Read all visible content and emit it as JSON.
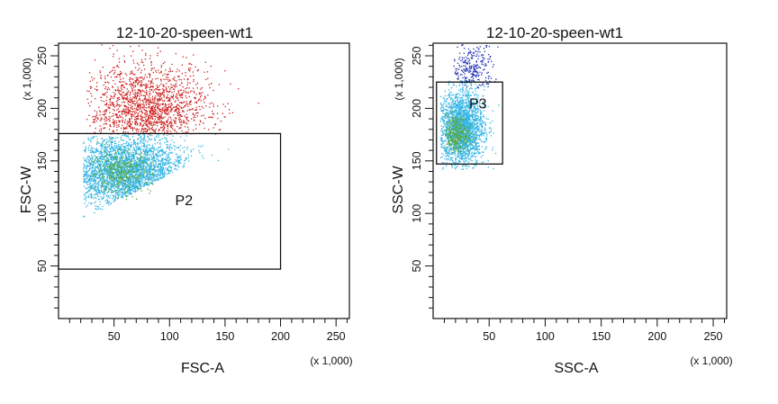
{
  "chart_data": [
    {
      "type": "scatter",
      "title": "12-10-20-speen-wt1",
      "xlabel": "FSC-A",
      "ylabel": "FSC-W",
      "x_multiplier": "(x 1,000)",
      "y_multiplier": "(x 1,000)",
      "xlim": [
        0,
        262
      ],
      "ylim": [
        0,
        262
      ],
      "x_ticks": [
        50,
        100,
        150,
        200,
        250
      ],
      "y_ticks": [
        50,
        100,
        150,
        200,
        250
      ],
      "x_tick_labels": [
        "50",
        "100",
        "150",
        "200",
        "250"
      ],
      "y_tick_labels": [
        "50",
        "100",
        "150",
        "200",
        "250"
      ],
      "gate": {
        "name": "P2",
        "x0": 0,
        "x1": 200,
        "y0": 47,
        "y1": 176
      },
      "populations": [
        {
          "color": "#cc1f1f",
          "x_range": [
            25,
            180
          ],
          "y_range": [
            176,
            262
          ],
          "x_mean": 80,
          "x_sd": 28,
          "y_mean": 198,
          "y_sd": 22,
          "count": 1600
        },
        {
          "color": "#33b5e5",
          "x_range": [
            22,
            175
          ],
          "y_range": [
            95,
            176
          ],
          "x_mean": 60,
          "x_sd": 28,
          "y_mean": 140,
          "y_sd": 18,
          "count": 3400
        },
        {
          "color": "#5aa83a",
          "x_range": [
            28,
            110
          ],
          "y_range": [
            110,
            170
          ],
          "x_mean": 55,
          "x_sd": 14,
          "y_mean": 140,
          "y_sd": 10,
          "count": 350
        }
      ]
    },
    {
      "type": "scatter",
      "title": "12-10-20-speen-wt1",
      "xlabel": "SSC-A",
      "ylabel": "SSC-W",
      "x_multiplier": "(x 1,000)",
      "y_multiplier": "(x 1,000)",
      "xlim": [
        0,
        262
      ],
      "ylim": [
        0,
        262
      ],
      "x_ticks": [
        50,
        100,
        150,
        200,
        250
      ],
      "y_ticks": [
        50,
        100,
        150,
        200,
        250
      ],
      "x_tick_labels": [
        "50",
        "100",
        "150",
        "200",
        "250"
      ],
      "y_tick_labels": [
        "50",
        "100",
        "150",
        "200",
        "250"
      ],
      "gate": {
        "name": "P3",
        "x0": 3,
        "x1": 62,
        "y0": 147,
        "y1": 225
      },
      "populations": [
        {
          "color": "#1f2fb5",
          "x_range": [
            18,
            58
          ],
          "y_range": [
            220,
            262
          ],
          "x_mean": 35,
          "x_sd": 9,
          "y_mean": 238,
          "y_sd": 12,
          "count": 260
        },
        {
          "color": "#33b5e5",
          "x_range": [
            6,
            60
          ],
          "y_range": [
            142,
            228
          ],
          "x_mean": 25,
          "x_sd": 10,
          "y_mean": 182,
          "y_sd": 18,
          "count": 2200
        },
        {
          "color": "#5aa83a",
          "x_range": [
            10,
            40
          ],
          "y_range": [
            158,
            200
          ],
          "x_mean": 20,
          "x_sd": 6,
          "y_mean": 176,
          "y_sd": 9,
          "count": 300
        }
      ]
    }
  ]
}
